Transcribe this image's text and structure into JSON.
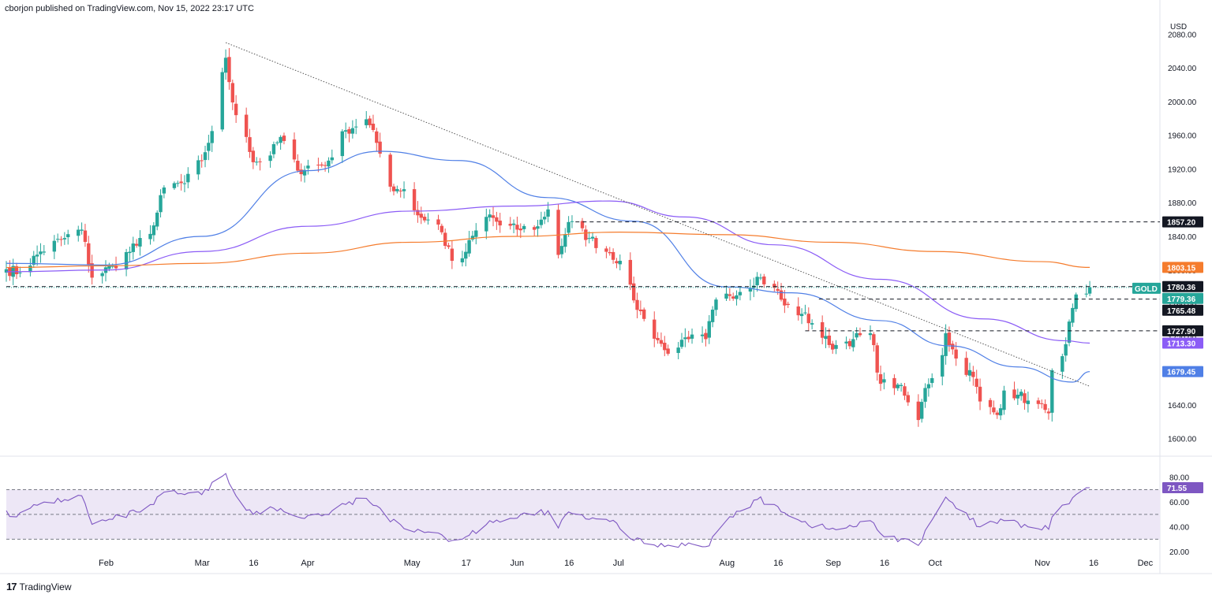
{
  "header": {
    "publisher_text": "cborjon published on TradingView.com, Nov 15, 2022 23:17 UTC"
  },
  "footer": {
    "brand": "TradingView",
    "logo_glyph": "17"
  },
  "colors": {
    "up": "#26a69a",
    "down": "#ef5350",
    "sma50": "#4f7fe6",
    "sma100": "#8b5cf6",
    "sma200": "#f57c2d",
    "rsi": "#7e57c2",
    "rsi_band": "#ede7f6",
    "axis_text": "#131722"
  },
  "chart_data": [
    {
      "type": "candlestick",
      "symbol": "GOLD",
      "currency": "USD",
      "ylim": [
        1580,
        2100
      ],
      "y_ticks": [
        1600,
        1640,
        1680,
        1720,
        1760,
        1800,
        1840,
        1880,
        1920,
        1960,
        2000,
        2040,
        2080
      ],
      "y_tick_labels": [
        "1600.00",
        "1640.00",
        "1680.00",
        "1720.00",
        "1760.00",
        "1800.00",
        "1840.00",
        "1880.00",
        "1920.00",
        "1960.00",
        "2000.00",
        "2040.00",
        "2080.00"
      ],
      "x_ticks": [
        {
          "date": "2022-02-01",
          "label": "Feb"
        },
        {
          "date": "2022-03-01",
          "label": "Mar"
        },
        {
          "date": "2022-03-16",
          "label": "16"
        },
        {
          "date": "2022-04-01",
          "label": "Apr"
        },
        {
          "date": "2022-05-01",
          "label": "May"
        },
        {
          "date": "2022-05-17",
          "label": "17"
        },
        {
          "date": "2022-06-01",
          "label": "Jun"
        },
        {
          "date": "2022-06-16",
          "label": "16"
        },
        {
          "date": "2022-07-01",
          "label": "Jul"
        },
        {
          "date": "2022-08-01",
          "label": "Aug"
        },
        {
          "date": "2022-08-16",
          "label": "16"
        },
        {
          "date": "2022-09-01",
          "label": "Sep"
        },
        {
          "date": "2022-09-16",
          "label": "16"
        },
        {
          "date": "2022-10-01",
          "label": "Oct"
        },
        {
          "date": "2022-11-01",
          "label": "Nov"
        },
        {
          "date": "2022-11-16",
          "label": "16"
        },
        {
          "date": "2022-12-01",
          "label": "Dec"
        }
      ],
      "close_anchors": [
        [
          "2022-01-03",
          1801
        ],
        [
          "2022-01-07",
          1797
        ],
        [
          "2022-01-13",
          1822
        ],
        [
          "2022-01-20",
          1838
        ],
        [
          "2022-01-25",
          1848
        ],
        [
          "2022-01-28",
          1791
        ],
        [
          "2022-02-03",
          1805
        ],
        [
          "2022-02-10",
          1829
        ],
        [
          "2022-02-15",
          1853
        ],
        [
          "2022-02-18",
          1898
        ],
        [
          "2022-02-24",
          1903
        ],
        [
          "2022-03-01",
          1930
        ],
        [
          "2022-03-04",
          1965
        ],
        [
          "2022-03-08",
          2052
        ],
        [
          "2022-03-10",
          1999
        ],
        [
          "2022-03-14",
          1958
        ],
        [
          "2022-03-16",
          1928
        ],
        [
          "2022-03-21",
          1936
        ],
        [
          "2022-03-24",
          1958
        ],
        [
          "2022-03-29",
          1918
        ],
        [
          "2022-04-01",
          1924
        ],
        [
          "2022-04-06",
          1924
        ],
        [
          "2022-04-12",
          1966
        ],
        [
          "2022-04-18",
          1979
        ],
        [
          "2022-04-21",
          1951
        ],
        [
          "2022-04-25",
          1899
        ],
        [
          "2022-04-29",
          1896
        ],
        [
          "2022-05-03",
          1865
        ],
        [
          "2022-05-09",
          1854
        ],
        [
          "2022-05-13",
          1811
        ],
        [
          "2022-05-16",
          1814
        ],
        [
          "2022-05-20",
          1847
        ],
        [
          "2022-05-24",
          1866
        ],
        [
          "2022-05-27",
          1853
        ],
        [
          "2022-06-01",
          1848
        ],
        [
          "2022-06-07",
          1852
        ],
        [
          "2022-06-10",
          1872
        ],
        [
          "2022-06-13",
          1818
        ],
        [
          "2022-06-16",
          1857
        ],
        [
          "2022-06-22",
          1838
        ],
        [
          "2022-06-28",
          1820
        ],
        [
          "2022-07-01",
          1811
        ],
        [
          "2022-07-05",
          1764
        ],
        [
          "2022-07-08",
          1742
        ],
        [
          "2022-07-14",
          1705
        ],
        [
          "2022-07-18",
          1708
        ],
        [
          "2022-07-21",
          1718
        ],
        [
          "2022-07-26",
          1718
        ],
        [
          "2022-07-29",
          1765
        ],
        [
          "2022-08-01",
          1772
        ],
        [
          "2022-08-05",
          1774
        ],
        [
          "2022-08-10",
          1792
        ],
        [
          "2022-08-15",
          1779
        ],
        [
          "2022-08-18",
          1758
        ],
        [
          "2022-08-23",
          1748
        ],
        [
          "2022-08-26",
          1737
        ],
        [
          "2022-08-31",
          1711
        ],
        [
          "2022-09-02",
          1711
        ],
        [
          "2022-09-07",
          1718
        ],
        [
          "2022-09-12",
          1725
        ],
        [
          "2022-09-15",
          1665
        ],
        [
          "2022-09-20",
          1664
        ],
        [
          "2022-09-23",
          1643
        ],
        [
          "2022-09-26",
          1622
        ],
        [
          "2022-09-28",
          1660
        ],
        [
          "2022-10-03",
          1699
        ],
        [
          "2022-10-04",
          1725
        ],
        [
          "2022-10-07",
          1695
        ],
        [
          "2022-10-12",
          1673
        ],
        [
          "2022-10-14",
          1644
        ],
        [
          "2022-10-19",
          1628
        ],
        [
          "2022-10-21",
          1657
        ],
        [
          "2022-10-25",
          1652
        ],
        [
          "2022-10-28",
          1645
        ],
        [
          "2022-11-02",
          1634
        ],
        [
          "2022-11-03",
          1630
        ],
        [
          "2022-11-04",
          1681
        ],
        [
          "2022-11-08",
          1712
        ],
        [
          "2022-11-10",
          1755
        ],
        [
          "2022-11-11",
          1771
        ],
        [
          "2022-11-14",
          1772
        ],
        [
          "2022-11-15",
          1779.36
        ]
      ],
      "moving_averages": [
        {
          "name": "SMA 50",
          "color_key": "sma50",
          "last": 1679.45,
          "points": [
            [
              "2022-01-03",
              1808
            ],
            [
              "2022-02-01",
              1806
            ],
            [
              "2022-03-01",
              1840
            ],
            [
              "2022-04-01",
              1918
            ],
            [
              "2022-04-22",
              1941
            ],
            [
              "2022-05-15",
              1930
            ],
            [
              "2022-06-10",
              1886
            ],
            [
              "2022-07-05",
              1858
            ],
            [
              "2022-08-01",
              1780
            ],
            [
              "2022-08-20",
              1773
            ],
            [
              "2022-09-15",
              1740
            ],
            [
              "2022-10-05",
              1710
            ],
            [
              "2022-10-25",
              1685
            ],
            [
              "2022-11-10",
              1667
            ],
            [
              "2022-11-15",
              1679.45
            ]
          ]
        },
        {
          "name": "SMA 100",
          "color_key": "sma100",
          "last": 1713.3,
          "points": [
            [
              "2022-01-03",
              1798
            ],
            [
              "2022-02-01",
              1800
            ],
            [
              "2022-03-01",
              1822
            ],
            [
              "2022-04-01",
              1852
            ],
            [
              "2022-05-01",
              1870
            ],
            [
              "2022-06-01",
              1876
            ],
            [
              "2022-06-28",
              1882
            ],
            [
              "2022-07-20",
              1863
            ],
            [
              "2022-08-15",
              1830
            ],
            [
              "2022-09-15",
              1789
            ],
            [
              "2022-10-15",
              1742
            ],
            [
              "2022-11-08",
              1716
            ],
            [
              "2022-11-15",
              1713.3
            ]
          ]
        },
        {
          "name": "SMA 200",
          "color_key": "sma200",
          "last": 1803.15,
          "points": [
            [
              "2022-01-03",
              1803
            ],
            [
              "2022-02-01",
              1805
            ],
            [
              "2022-03-01",
              1808
            ],
            [
              "2022-04-01",
              1820
            ],
            [
              "2022-05-01",
              1833
            ],
            [
              "2022-06-01",
              1840
            ],
            [
              "2022-07-01",
              1845
            ],
            [
              "2022-08-01",
              1842
            ],
            [
              "2022-09-01",
              1833
            ],
            [
              "2022-10-01",
              1822
            ],
            [
              "2022-11-01",
              1810
            ],
            [
              "2022-11-15",
              1803.15
            ]
          ]
        }
      ],
      "horizontal_levels": [
        {
          "value": 1857.2,
          "label": "1857.20",
          "start": "2022-06-18",
          "style": "dashed",
          "badge_color": "#131722"
        },
        {
          "value": 1780.36,
          "label": "1780.36",
          "start": "2022-01-03",
          "style": "dashed",
          "badge_color": "#131722"
        },
        {
          "value": 1765.48,
          "label": "1765.48",
          "start": "2022-08-28",
          "style": "dashed",
          "badge_color": "#131722"
        },
        {
          "value": 1727.9,
          "label": "1727.90",
          "start": "2022-08-24",
          "style": "dashed",
          "badge_color": "#131722"
        }
      ],
      "price_badges": [
        {
          "label": "1803.15",
          "value": 1803.15,
          "color": "#f57c2d"
        },
        {
          "label": "1713.30",
          "value": 1713.3,
          "color": "#8b5cf6"
        },
        {
          "label": "1679.45",
          "value": 1679.45,
          "color": "#4f7fe6"
        }
      ],
      "last_price": {
        "symbol": "GOLD",
        "value": 1779.36,
        "label": "1779.36",
        "color": "#26a69a"
      },
      "trendline": {
        "start": [
          "2022-03-08",
          2070
        ],
        "end": [
          "2022-11-15",
          1662
        ]
      }
    },
    {
      "type": "line",
      "name": "RSI",
      "ylim": [
        15,
        90
      ],
      "y_ticks": [
        20,
        40,
        60,
        80
      ],
      "y_tick_labels": [
        "20.00",
        "40.00",
        "60.00",
        "80.00"
      ],
      "band": [
        30,
        70
      ],
      "mid": 50,
      "last": 71.55,
      "last_label": "71.55",
      "anchors": [
        [
          "2022-01-03",
          53
        ],
        [
          "2022-01-06",
          48
        ],
        [
          "2022-01-14",
          60
        ],
        [
          "2022-01-20",
          62
        ],
        [
          "2022-01-25",
          65
        ],
        [
          "2022-01-28",
          42
        ],
        [
          "2022-02-03",
          46
        ],
        [
          "2022-02-10",
          52
        ],
        [
          "2022-02-15",
          58
        ],
        [
          "2022-02-18",
          68
        ],
        [
          "2022-02-24",
          66
        ],
        [
          "2022-03-01",
          66
        ],
        [
          "2022-03-08",
          83
        ],
        [
          "2022-03-11",
          65
        ],
        [
          "2022-03-16",
          50
        ],
        [
          "2022-03-22",
          55
        ],
        [
          "2022-03-29",
          48
        ],
        [
          "2022-04-06",
          50
        ],
        [
          "2022-04-12",
          58
        ],
        [
          "2022-04-18",
          63
        ],
        [
          "2022-04-21",
          57
        ],
        [
          "2022-04-25",
          44
        ],
        [
          "2022-05-03",
          38
        ],
        [
          "2022-05-09",
          35
        ],
        [
          "2022-05-13",
          29
        ],
        [
          "2022-05-16",
          30
        ],
        [
          "2022-05-24",
          45
        ],
        [
          "2022-06-01",
          47
        ],
        [
          "2022-06-10",
          53
        ],
        [
          "2022-06-13",
          39
        ],
        [
          "2022-06-16",
          52
        ],
        [
          "2022-06-22",
          46
        ],
        [
          "2022-06-30",
          43
        ],
        [
          "2022-07-05",
          29
        ],
        [
          "2022-07-14",
          24
        ],
        [
          "2022-07-21",
          27
        ],
        [
          "2022-07-26",
          24
        ],
        [
          "2022-08-01",
          45
        ],
        [
          "2022-08-10",
          62
        ],
        [
          "2022-08-15",
          58
        ],
        [
          "2022-08-23",
          44
        ],
        [
          "2022-08-31",
          38
        ],
        [
          "2022-09-07",
          40
        ],
        [
          "2022-09-12",
          45
        ],
        [
          "2022-09-16",
          32
        ],
        [
          "2022-09-23",
          30
        ],
        [
          "2022-09-26",
          25
        ],
        [
          "2022-10-04",
          64
        ],
        [
          "2022-10-07",
          55
        ],
        [
          "2022-10-14",
          40
        ],
        [
          "2022-10-21",
          45
        ],
        [
          "2022-10-28",
          40
        ],
        [
          "2022-11-03",
          38
        ],
        [
          "2022-11-04",
          48
        ],
        [
          "2022-11-08",
          58
        ],
        [
          "2022-11-11",
          66
        ],
        [
          "2022-11-15",
          71.55
        ]
      ]
    }
  ]
}
